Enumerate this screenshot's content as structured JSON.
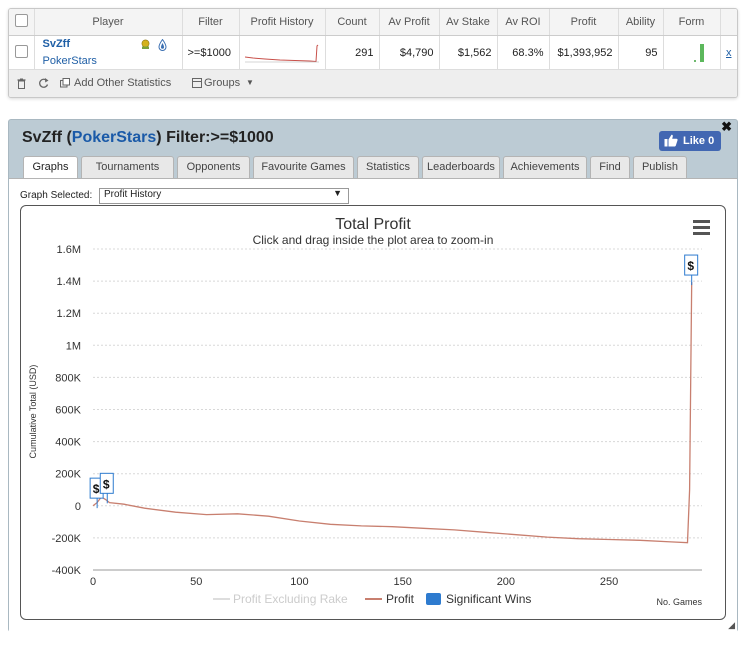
{
  "stats_table": {
    "headers": [
      "Player",
      "Filter",
      "Profit History",
      "Count",
      "Av Profit",
      "Av Stake",
      "Av ROI",
      "Profit",
      "Ability",
      "Form"
    ],
    "row": {
      "player": "SvZff",
      "site": "PokerStars",
      "filter": ">=$1000",
      "count": "291",
      "av_profit": "$4,790",
      "av_stake": "$1,562",
      "av_roi": "68.3%",
      "profit": "$1,393,952",
      "ability": "95",
      "remove": "x"
    },
    "toolbar": {
      "add_stats": "Add Other Statistics",
      "groups": "Groups"
    }
  },
  "panel": {
    "player": "SvZff",
    "site": "PokerStars",
    "filter_label": "Filter:>=$1000",
    "like_label": "Like 0",
    "tabs": [
      "Graphs",
      "Tournaments",
      "Opponents",
      "Favourite Games",
      "Statistics",
      "Leaderboards",
      "Achievements",
      "Find",
      "Publish"
    ],
    "active_tab": "Graphs",
    "graph_selected_label": "Graph Selected:",
    "graph_selected_value": "Profit History"
  },
  "chart_data": {
    "type": "line",
    "title": "Total Profit",
    "subtitle": "Click and drag inside the plot area to zoom-in",
    "xlabel": "No. Games",
    "ylabel": "Cumulative Total (USD)",
    "xlim": [
      0,
      295
    ],
    "ylim": [
      -400000,
      1600000
    ],
    "x_ticks": [
      0,
      50,
      100,
      150,
      200,
      250
    ],
    "y_ticks": [
      -400000,
      -200000,
      0,
      200000,
      400000,
      600000,
      800000,
      1000000,
      1200000,
      1400000,
      1600000
    ],
    "y_tick_labels": [
      "-400K",
      "-200K",
      "0",
      "200K",
      "400K",
      "600K",
      "800K",
      "1M",
      "1.2M",
      "1.4M",
      "1.6M"
    ],
    "series": [
      {
        "name": "Profit Excluding Rake",
        "color": "#dddddd",
        "points": []
      },
      {
        "name": "Profit",
        "color": "#c87f6f",
        "points": [
          [
            0,
            0
          ],
          [
            2,
            20000
          ],
          [
            4,
            55000
          ],
          [
            6,
            40000
          ],
          [
            8,
            20000
          ],
          [
            15,
            10000
          ],
          [
            25,
            -15000
          ],
          [
            40,
            -40000
          ],
          [
            55,
            -55000
          ],
          [
            70,
            -50000
          ],
          [
            85,
            -65000
          ],
          [
            100,
            -95000
          ],
          [
            115,
            -115000
          ],
          [
            130,
            -125000
          ],
          [
            145,
            -130000
          ],
          [
            160,
            -140000
          ],
          [
            175,
            -150000
          ],
          [
            190,
            -165000
          ],
          [
            205,
            -180000
          ],
          [
            220,
            -195000
          ],
          [
            235,
            -205000
          ],
          [
            250,
            -210000
          ],
          [
            265,
            -215000
          ],
          [
            280,
            -225000
          ],
          [
            288,
            -230000
          ],
          [
            289,
            100000
          ],
          [
            290,
            1393952
          ]
        ]
      }
    ],
    "significant_wins": {
      "name": "Significant Wins",
      "color": "#2e7bcf",
      "label": "$",
      "points": [
        [
          2,
          110000
        ],
        [
          4,
          140000
        ],
        [
          290,
          1500000
        ]
      ]
    },
    "legend_placement": "bottom-center",
    "grid": true
  }
}
